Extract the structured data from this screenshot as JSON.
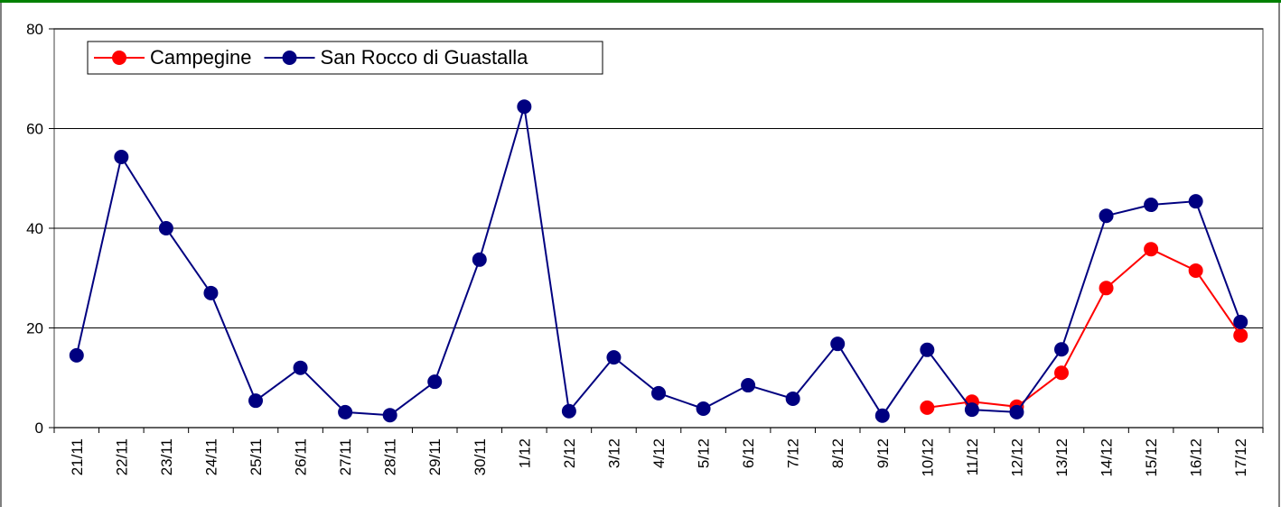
{
  "chart_data": {
    "type": "line",
    "categories": [
      "21/11",
      "22/11",
      "23/11",
      "24/11",
      "25/11",
      "26/11",
      "27/11",
      "28/11",
      "29/11",
      "30/11",
      "1/12",
      "2/12",
      "3/12",
      "4/12",
      "5/12",
      "6/12",
      "7/12",
      "8/12",
      "9/12",
      "10/12",
      "11/12",
      "12/12",
      "13/12",
      "14/12",
      "15/12",
      "16/12",
      "17/12"
    ],
    "series": [
      {
        "name": "Campegine",
        "color": "#ff0000",
        "values": [
          null,
          null,
          null,
          null,
          null,
          null,
          null,
          null,
          null,
          null,
          null,
          null,
          null,
          null,
          null,
          null,
          null,
          null,
          null,
          4,
          5.2,
          4.2,
          11,
          28,
          35.8,
          31.5,
          18.5
        ]
      },
      {
        "name": "San Rocco di Guastalla",
        "color": "#000080",
        "values": [
          14.5,
          54.3,
          40,
          27,
          5.4,
          12,
          3.1,
          2.5,
          9.2,
          33.7,
          64.4,
          3.3,
          14.1,
          6.9,
          3.8,
          8.5,
          5.8,
          16.8,
          2.4,
          15.6,
          3.6,
          3.1,
          15.7,
          42.5,
          44.7,
          45.4,
          21.2
        ]
      }
    ],
    "ylim": [
      0,
      80
    ],
    "yticks": [
      0,
      20,
      40,
      60,
      80
    ],
    "grid": true,
    "legend": "top-left"
  }
}
